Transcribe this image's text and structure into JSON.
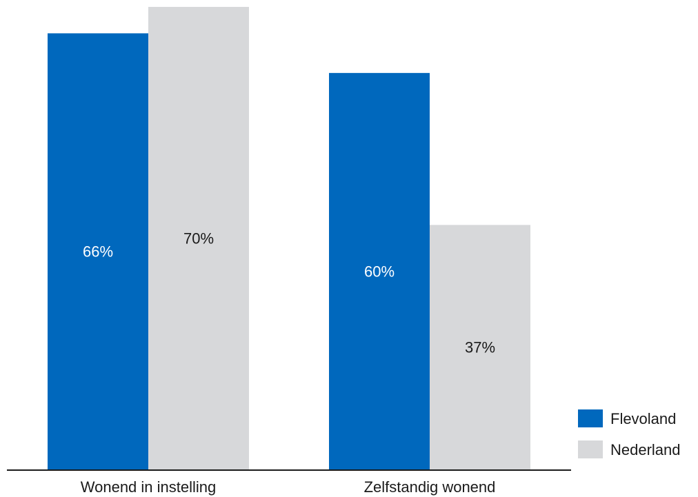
{
  "chart_data": {
    "type": "bar",
    "categories": [
      "Wonend in instelling",
      "Zelfstandig wonend"
    ],
    "series": [
      {
        "name": "Flevoland",
        "values": [
          66,
          60
        ],
        "labels": [
          "66%",
          "60%"
        ],
        "color": "#0068bd",
        "label_color": "#ffffff"
      },
      {
        "name": "Nederland",
        "values": [
          70,
          37
        ],
        "labels": [
          "70%",
          "37%"
        ],
        "color": "#d7d8da",
        "label_color": "#1a1a1a"
      }
    ],
    "title": "",
    "xlabel": "",
    "ylabel": "",
    "ylim": [
      0,
      70
    ],
    "grid": false,
    "legend_position": "bottom-right"
  }
}
